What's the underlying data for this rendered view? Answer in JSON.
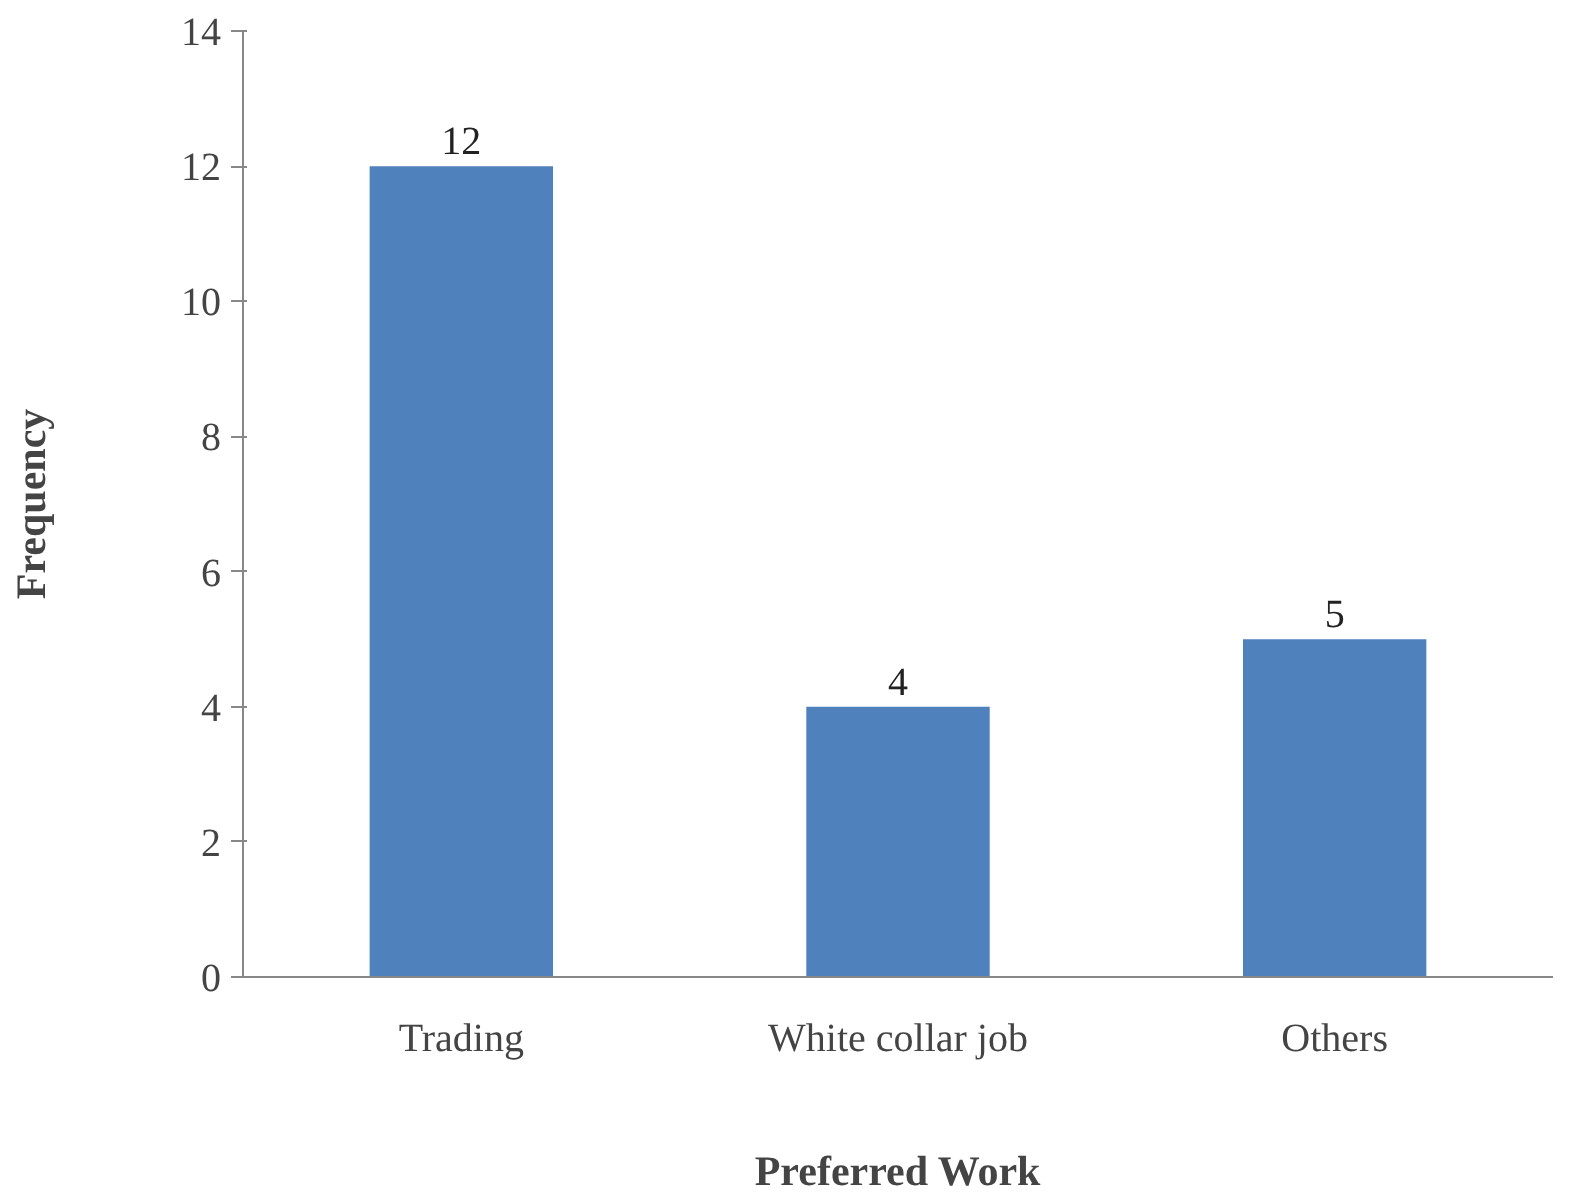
{
  "chart_data": {
    "type": "bar",
    "xlabel": "Preferred Work",
    "ylabel": "Frequency",
    "categories": [
      "Trading",
      "White collar job",
      "Others"
    ],
    "values": [
      12,
      4,
      5
    ],
    "color": "#4f81bd",
    "data_labels": true,
    "ylim": [
      0,
      14
    ],
    "yticks": [
      0,
      2,
      4,
      6,
      8,
      10,
      12,
      14
    ],
    "grid": false
  }
}
